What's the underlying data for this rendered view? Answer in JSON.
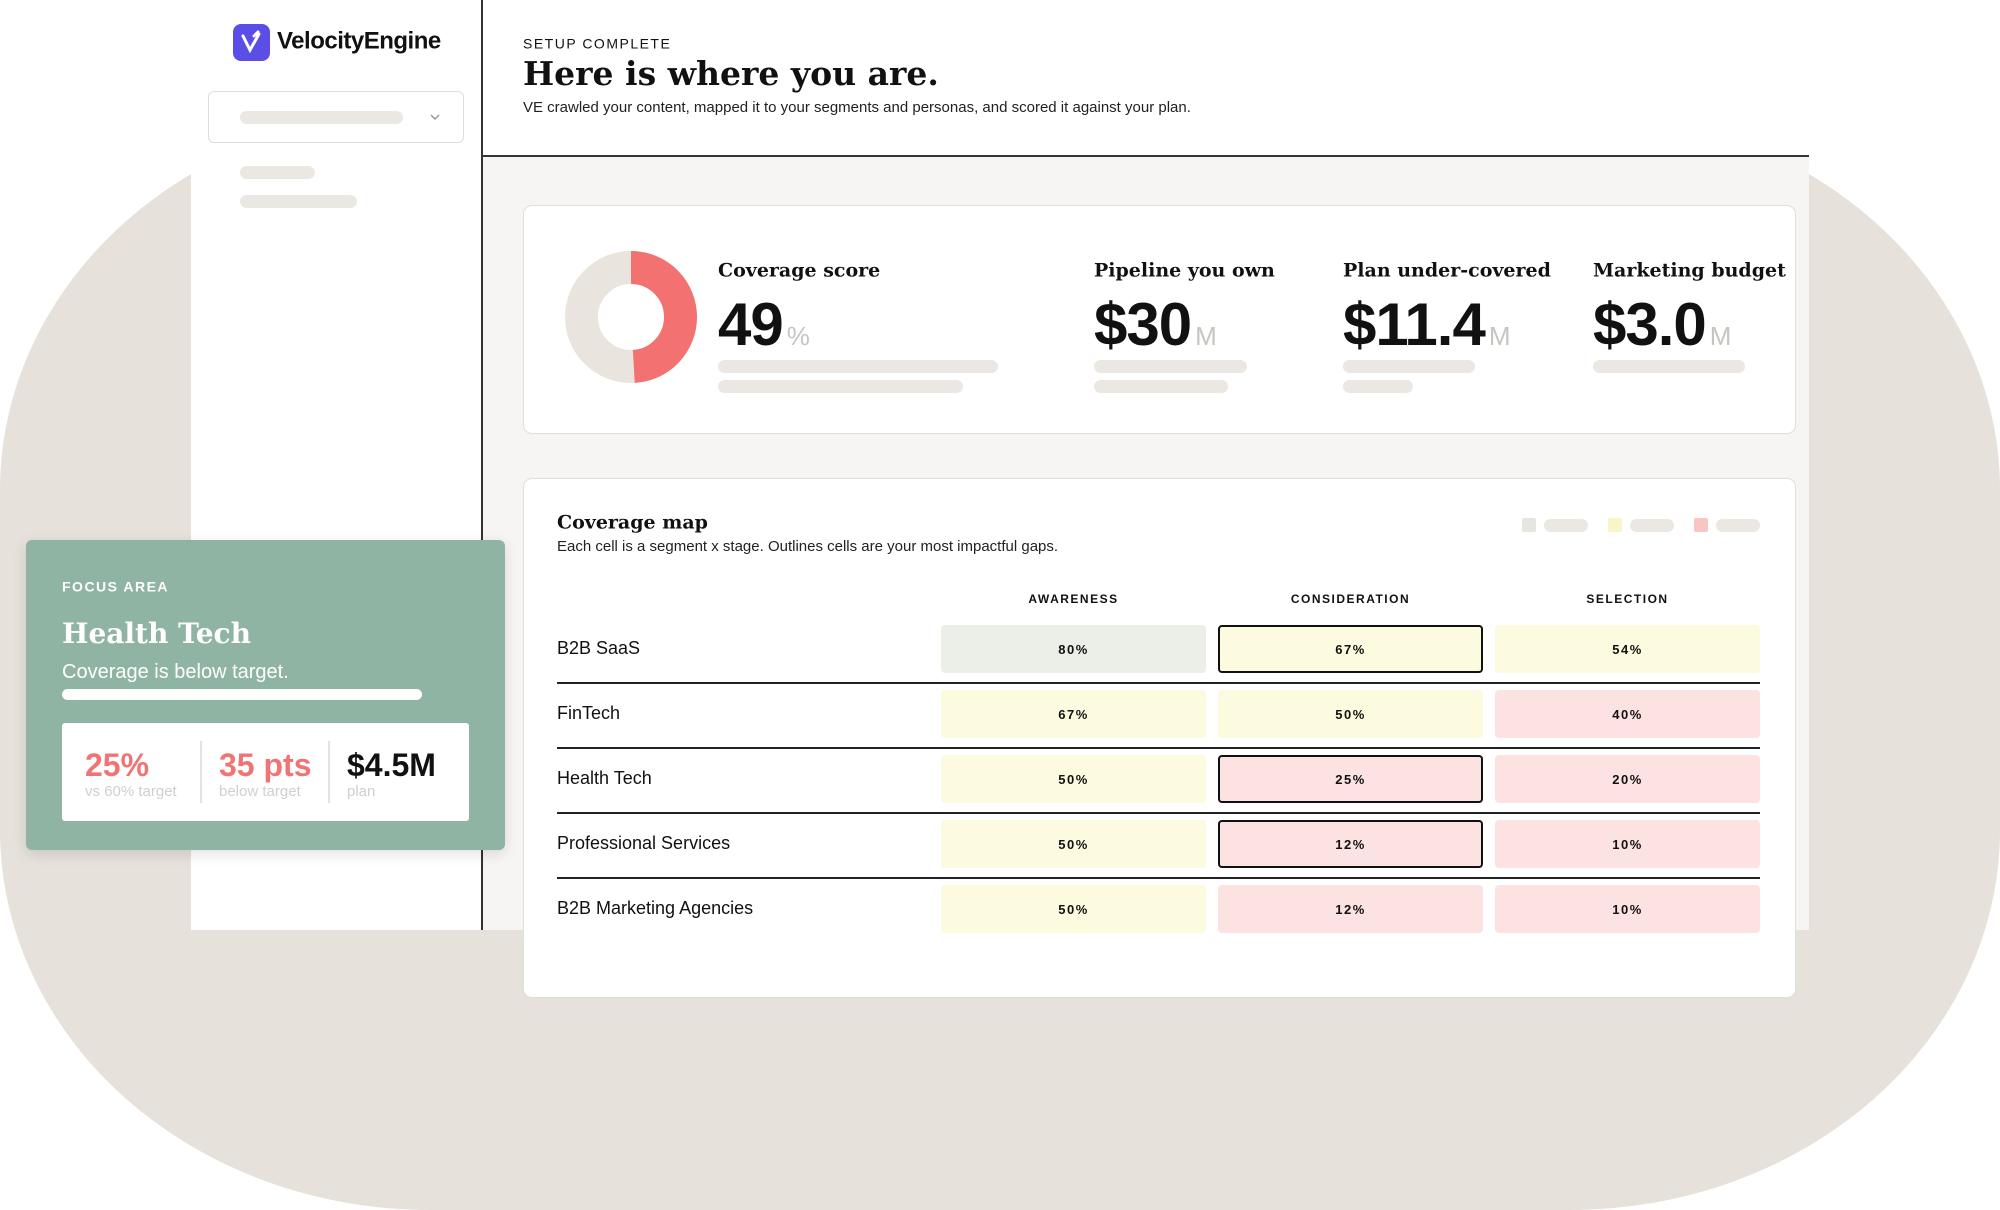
{
  "sidebar": {
    "brand": "VelocityEngine"
  },
  "header": {
    "eyebrow": "SETUP COMPLETE",
    "title": "Here is where you are.",
    "subtitle": "VE crawled your content, mapped it to your segments and personas, and scored it against your plan."
  },
  "kpis": [
    {
      "label": "Coverage score",
      "value": 49,
      "unit": "%",
      "range": [
        0,
        100
      ],
      "color": "#f47171",
      "track": "#e9e4de"
    },
    {
      "label": "Pipeline you own",
      "value": "$30",
      "unit": "M"
    },
    {
      "label": "Plan under-covered",
      "value": "$11.4",
      "unit": "M"
    },
    {
      "label": "Marketing budget",
      "value": "$3.0",
      "unit": "M"
    }
  ],
  "coverage_map": {
    "title": "Coverage map",
    "subtitle": "Each cell is a segment x stage. Outlines cells are your most impactful gaps.",
    "legend": [
      {
        "color": "#e4e6df"
      },
      {
        "color": "#f8f5c8"
      },
      {
        "color": "#f8c4c4"
      }
    ],
    "columns": [
      "AWARENESS",
      "CONSIDERATION",
      "SELECTION"
    ],
    "rows": [
      {
        "segment": "B2B SaaS",
        "cells": [
          {
            "label": "80%",
            "color": "#eceee8"
          },
          {
            "label": "67%",
            "color": "#fcfbdf",
            "outlined": true
          },
          {
            "label": "54%",
            "color": "#fcfbdf"
          }
        ]
      },
      {
        "segment": "FinTech",
        "cells": [
          {
            "label": "67%",
            "color": "#fcfbdf"
          },
          {
            "label": "50%",
            "color": "#fcfbdf"
          },
          {
            "label": "40%",
            "color": "#fde2e2"
          }
        ]
      },
      {
        "segment": "Health Tech",
        "cells": [
          {
            "label": "50%",
            "color": "#fcfbdf"
          },
          {
            "label": "25%",
            "color": "#fde2e2",
            "outlined": true
          },
          {
            "label": "20%",
            "color": "#fde2e2"
          }
        ]
      },
      {
        "segment": "Professional Services",
        "cells": [
          {
            "label": "50%",
            "color": "#fcfbdf"
          },
          {
            "label": "12%",
            "color": "#fde2e2",
            "outlined": true
          },
          {
            "label": "10%",
            "color": "#fde2e2"
          }
        ]
      },
      {
        "segment": "B2B Marketing Agencies",
        "cells": [
          {
            "label": "50%",
            "color": "#fcfbdf"
          },
          {
            "label": "12%",
            "color": "#fde2e2"
          },
          {
            "label": "10%",
            "color": "#fde2e2"
          }
        ]
      }
    ]
  },
  "focus": {
    "eyebrow": "FOCUS AREA",
    "title": "Health Tech",
    "message": "Coverage is below target.",
    "stats": [
      {
        "value": "25%",
        "caption": "vs 60% target",
        "color": "#f07474"
      },
      {
        "value": "35 pts",
        "caption": "below target",
        "color": "#f07474"
      },
      {
        "value": "$4.5M",
        "caption": "plan",
        "color": "#111111"
      }
    ]
  }
}
